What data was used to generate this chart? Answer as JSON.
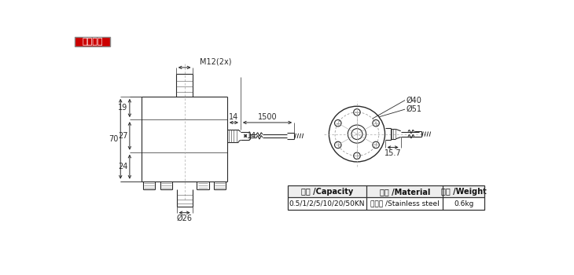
{
  "title_text": "外形尺寸",
  "title_bg": "#cc0000",
  "title_fg": "#ffffff",
  "bg_color": "#ffffff",
  "line_color": "#2a2a2a",
  "dim_color": "#2a2a2a",
  "table_cols": [
    "量程 /Capacity",
    "材料 /Material",
    "重量 /Weight"
  ],
  "table_row": [
    "0.5/1/2/5/10/20/50KN",
    "不锈钢 /Stainless steel",
    "0.6kg"
  ],
  "annotations": {
    "M12_2x": "M12(2x)",
    "dim_19": "19",
    "dim_27": "27",
    "dim_70": "70",
    "dim_24": "24",
    "dim_14a": "14",
    "dim_14b": "14",
    "dim_1500": "1500",
    "dim_phi26": "Ø26",
    "dim_phi40": "Ø40",
    "dim_phi51": "Ø51",
    "dim_15_7": "15.7"
  }
}
